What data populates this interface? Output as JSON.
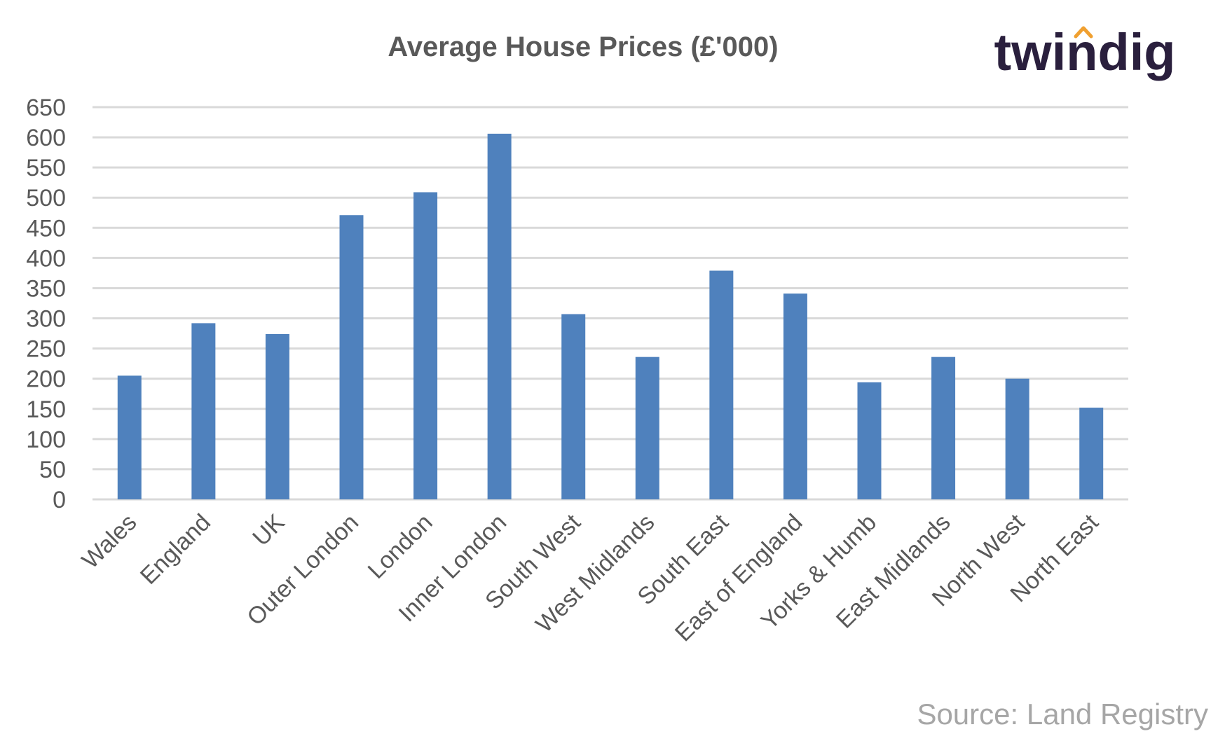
{
  "chart_data": {
    "type": "bar",
    "title": "Average House Prices (£'000)",
    "categories": [
      "Wales",
      "England",
      "UK",
      "Outer London",
      "London",
      "Inner London",
      "South West",
      "West Midlands",
      "South East",
      "East of England",
      "Yorks & Humb",
      "East Midlands",
      "North West",
      "North East"
    ],
    "values": [
      205,
      292,
      274,
      471,
      509,
      606,
      307,
      236,
      379,
      341,
      194,
      236,
      200,
      152
    ],
    "ylim": [
      0,
      650
    ],
    "yticks": [
      0,
      50,
      100,
      150,
      200,
      250,
      300,
      350,
      400,
      450,
      500,
      550,
      600,
      650
    ],
    "grid": true,
    "bar_color": "#4f81bd"
  },
  "brand": {
    "logo_text": "twindig",
    "accent_color": "#f0a030"
  },
  "source": "Source: Land Registry"
}
